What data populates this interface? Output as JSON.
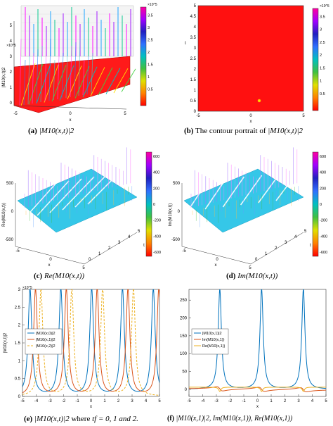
{
  "captions": {
    "a": {
      "label": "(a)",
      "math": "|M10(x,t)|2",
      "text": ""
    },
    "b": {
      "label": "(b)",
      "text": "The contour portrait of",
      "math": "|M10(x,t)|2"
    },
    "c": {
      "label": "(c)",
      "math": "Re(M10(x,t))",
      "text": ""
    },
    "d": {
      "label": "(d)",
      "math": "Im(M10(x,t))",
      "text": ""
    },
    "e": {
      "label": "(e)",
      "math": "|M10(x,t)|2",
      "text": "where",
      "tail": "tf = 0, 1 and 2."
    },
    "f": {
      "label": "(f)",
      "math": "|M10(x,1)|2, Im(M10(x,1)), Re(M10(x,1))",
      "text": ""
    }
  },
  "chart_data": [
    {
      "id": "a",
      "type": "surface",
      "xlabel": "x",
      "ylabel": "|M10(x,t)|2",
      "x_ticks": [
        "-5",
        "0",
        "5"
      ],
      "z_ticks": [
        "0",
        "1",
        "2",
        "3",
        "4",
        "5"
      ],
      "z_exponent": "×10^5",
      "colorbar": {
        "ticks": [
          "0.5",
          "1",
          "1.5",
          "2",
          "2.5",
          "3",
          "3.5"
        ],
        "exponent": "×10^5",
        "range": [
          0,
          350000
        ]
      }
    },
    {
      "id": "b",
      "type": "heatmap",
      "xlabel": "x",
      "ylabel": "t",
      "x_ticks": [
        "-5",
        "0",
        "5"
      ],
      "y_ticks": [
        "0",
        "0.5",
        "1",
        "1.5",
        "2",
        "2.5",
        "3",
        "3.5",
        "4",
        "4.5",
        "5"
      ],
      "xlim": [
        -5,
        5
      ],
      "ylim": [
        0,
        5
      ],
      "fill_value": "max",
      "marker": {
        "x": 0.8,
        "y": 0.5
      },
      "colorbar": {
        "ticks": [
          "0.5",
          "1",
          "1.5",
          "2",
          "2.5",
          "3",
          "3.5"
        ],
        "exponent": "×10^5",
        "range": [
          0,
          350000
        ]
      }
    },
    {
      "id": "c",
      "type": "surface",
      "xlabel": "x",
      "ylabel": "t",
      "zlabel": "Re(M10(x,t))",
      "x_ticks": [
        "-5",
        "0",
        "5"
      ],
      "t_ticks": [
        "0",
        "1",
        "2",
        "3",
        "4",
        "5"
      ],
      "z_ticks": [
        "-500",
        "0",
        "500"
      ],
      "colorbar": {
        "ticks": [
          "600",
          "400",
          "200",
          "0",
          "-200",
          "-400",
          "-600"
        ],
        "range": [
          -700,
          700
        ]
      }
    },
    {
      "id": "d",
      "type": "surface",
      "xlabel": "x",
      "ylabel": "t",
      "zlabel": "Im(M10(x,t))",
      "x_ticks": [
        "-5",
        "0",
        "5"
      ],
      "t_ticks": [
        "0",
        "1",
        "2",
        "3",
        "4",
        "5"
      ],
      "z_ticks": [
        "-500",
        "0",
        "500"
      ],
      "colorbar": {
        "ticks": [
          "600",
          "400",
          "200",
          "0",
          "-200",
          "-400",
          "-600"
        ],
        "range": [
          -700,
          700
        ]
      }
    },
    {
      "id": "e",
      "type": "line",
      "xlabel": "x",
      "ylabel": "|M10(x,t)|2",
      "xlim": [
        -5,
        5
      ],
      "ylim": [
        0,
        3
      ],
      "y_exponent": "×10^5",
      "x_ticks": [
        "-5",
        "-4",
        "-3",
        "-2",
        "-1",
        "0",
        "1",
        "2",
        "3",
        "4",
        "5"
      ],
      "y_ticks": [
        "0",
        "0.5",
        "1",
        "1.5",
        "2",
        "2.5",
        "3"
      ],
      "legend": "left",
      "series": [
        {
          "name": "|M10(x,0)|2",
          "color": "#0072bd",
          "dash": "solid",
          "centers": [
            -4.45,
            -2.2,
            0.05,
            2.3,
            4.55
          ],
          "peak": 3.0,
          "width": 0.028
        },
        {
          "name": "|M10(x,1)|2",
          "color": "#d95319",
          "dash": "solid",
          "centers": [
            -4.05,
            -1.8,
            0.45,
            2.7,
            4.95
          ],
          "peak": 3.0,
          "width": 0.028
        },
        {
          "name": "|M10(x,2)|2",
          "color": "#edb120",
          "dash": "dashed",
          "centers": [
            -3.65,
            -1.4,
            0.85,
            3.1
          ],
          "peak": 3.0,
          "width": 0.028
        }
      ]
    },
    {
      "id": "f",
      "type": "line",
      "xlabel": "x",
      "xlim": [
        -5,
        5
      ],
      "ylim": [
        -20,
        280
      ],
      "x_ticks": [
        "-5",
        "-4",
        "-3",
        "-2",
        "-1",
        "0",
        "1",
        "2",
        "3",
        "4",
        "5"
      ],
      "y_ticks": [
        "0",
        "50",
        "100",
        "150",
        "200",
        "250"
      ],
      "legend": "left",
      "series": [
        {
          "name": "|M10(x,1)|2",
          "color": "#0072bd",
          "kind": "intensity",
          "centers": [
            -2.75,
            0.3,
            3.35
          ],
          "peak": 280
        },
        {
          "name": "Im(M10(x,1))",
          "color": "#d95319",
          "kind": "imag",
          "centers": [
            -2.75,
            0.3,
            3.35
          ]
        },
        {
          "name": "Re(M10(x,1))",
          "color": "#edb120",
          "kind": "real",
          "centers": [
            -2.75,
            0.3,
            3.35
          ]
        }
      ]
    }
  ]
}
